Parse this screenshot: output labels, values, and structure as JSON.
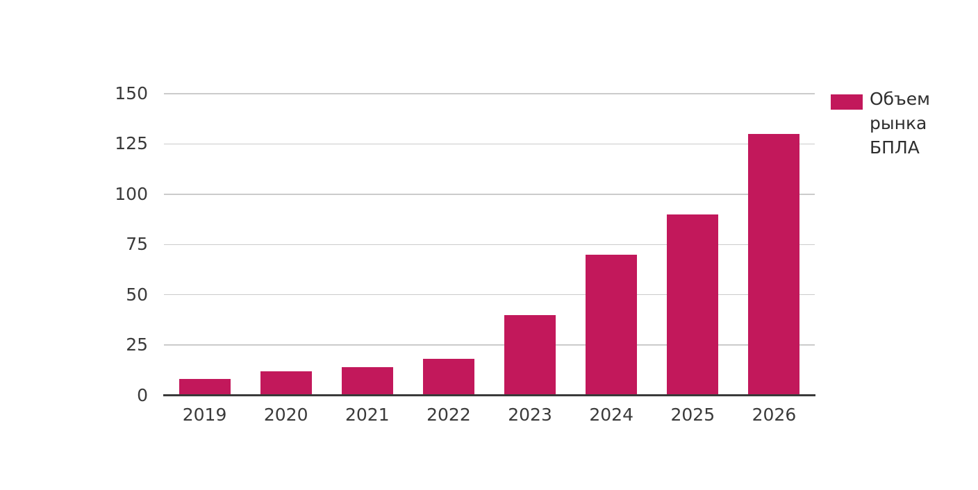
{
  "chart_data": {
    "type": "bar",
    "title": "",
    "categories": [
      "2019",
      "2020",
      "2021",
      "2022",
      "2023",
      "2024",
      "2025",
      "2026"
    ],
    "series": [
      {
        "name": "Объем рынка БПЛА",
        "values": [
          8,
          12,
          14,
          18,
          40,
          70,
          90,
          130
        ]
      }
    ],
    "xlabel": "",
    "ylabel": "",
    "ylim": [
      0,
      150
    ],
    "yticks": [
      0,
      25,
      50,
      75,
      100,
      125,
      150
    ],
    "grid": "horizontal",
    "legend_position": "right",
    "colors": {
      "bar": "#c2185b",
      "gridline": "#cbcbcb",
      "axis_line": "#3a3a3a",
      "tick_label": "#3a3a3a",
      "legend_text": "#2e2e2e",
      "background": "#ffffff"
    }
  },
  "legend": {
    "label": "Объем рынка БПЛА"
  }
}
